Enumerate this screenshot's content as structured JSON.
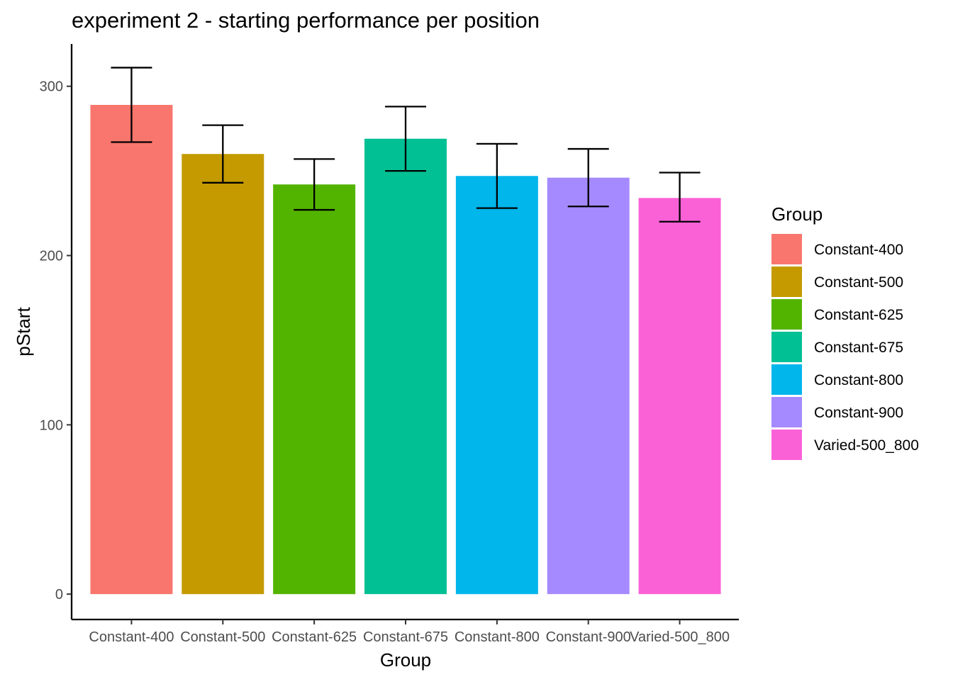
{
  "chart_data": {
    "type": "bar",
    "title": "experiment 2 - starting performance per position",
    "xlabel": "Group",
    "ylabel": "pStart",
    "categories": [
      "Constant-400",
      "Constant-500",
      "Constant-625",
      "Constant-675",
      "Constant-800",
      "Constant-900",
      "Varied-500_800"
    ],
    "values": [
      289,
      260,
      242,
      269,
      247,
      246,
      234
    ],
    "error_low": [
      267,
      243,
      227,
      250,
      228,
      229,
      220
    ],
    "error_high": [
      311,
      277,
      257,
      288,
      266,
      263,
      249
    ],
    "colors": [
      "#F8766D",
      "#C49A00",
      "#53B400",
      "#00C094",
      "#00B6EB",
      "#A58AFF",
      "#FB61D7"
    ],
    "ylim": [
      -15,
      325
    ],
    "yticks": [
      0,
      100,
      200,
      300
    ],
    "grid": false,
    "legend": {
      "title": "Group",
      "position": "right",
      "entries": [
        "Constant-400",
        "Constant-500",
        "Constant-625",
        "Constant-675",
        "Constant-800",
        "Constant-900",
        "Varied-500_800"
      ]
    }
  }
}
